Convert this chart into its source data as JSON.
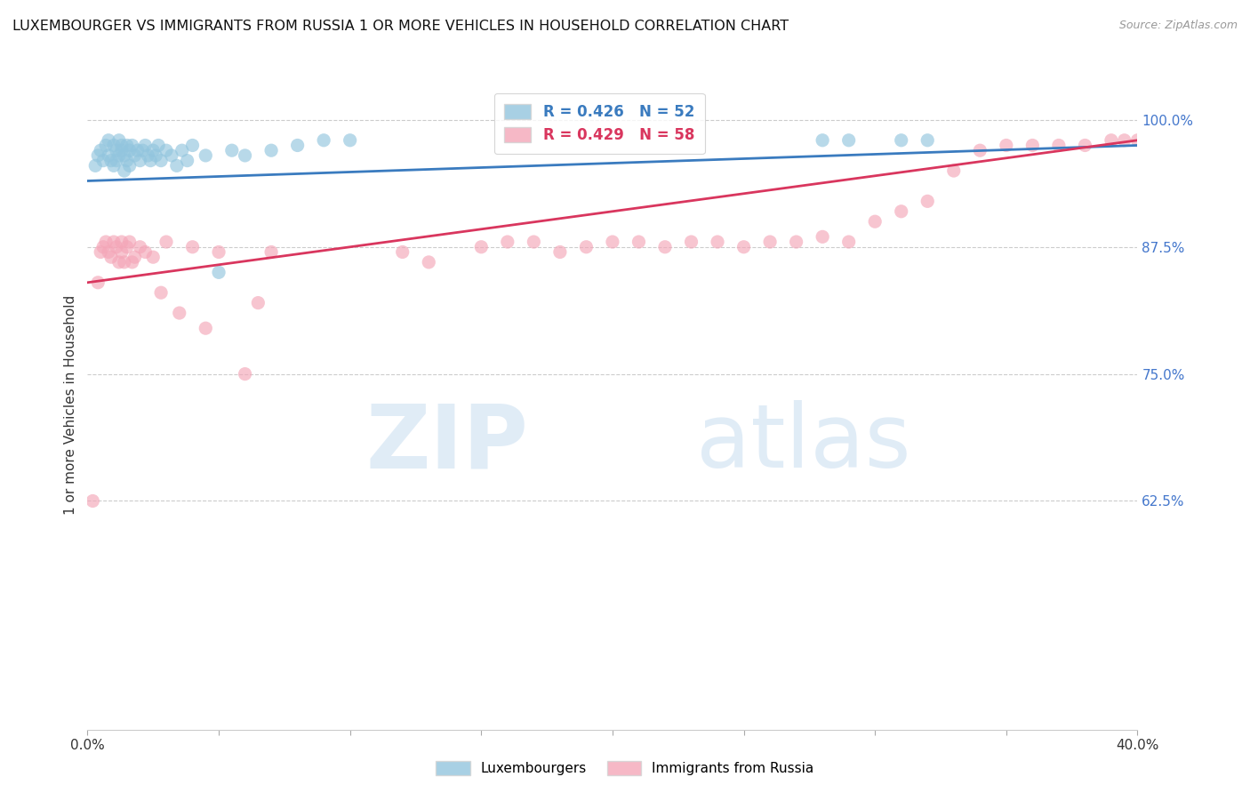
{
  "title": "LUXEMBOURGER VS IMMIGRANTS FROM RUSSIA 1 OR MORE VEHICLES IN HOUSEHOLD CORRELATION CHART",
  "source": "Source: ZipAtlas.com",
  "ylabel": "1 or more Vehicles in Household",
  "xlim": [
    0.0,
    0.4
  ],
  "ylim": [
    0.4,
    1.04
  ],
  "yticks_right": [
    0.625,
    0.75,
    0.875,
    1.0
  ],
  "ytick_labels_right": [
    "62.5%",
    "75.0%",
    "87.5%",
    "100.0%"
  ],
  "blue_R": 0.426,
  "blue_N": 52,
  "pink_R": 0.429,
  "pink_N": 58,
  "blue_color": "#92c5de",
  "pink_color": "#f4a6b8",
  "blue_line_color": "#3a7bbf",
  "pink_line_color": "#d9365e",
  "legend_label_blue": "Luxembourgers",
  "legend_label_pink": "Immigrants from Russia",
  "watermark_zip": "ZIP",
  "watermark_atlas": "atlas",
  "background_color": "#ffffff",
  "grid_color": "#cccccc",
  "blue_scatter_x": [
    0.003,
    0.004,
    0.005,
    0.006,
    0.007,
    0.008,
    0.008,
    0.009,
    0.01,
    0.01,
    0.011,
    0.011,
    0.012,
    0.012,
    0.013,
    0.013,
    0.014,
    0.014,
    0.015,
    0.015,
    0.016,
    0.016,
    0.017,
    0.018,
    0.019,
    0.02,
    0.021,
    0.022,
    0.023,
    0.024,
    0.025,
    0.026,
    0.027,
    0.028,
    0.03,
    0.032,
    0.034,
    0.036,
    0.038,
    0.04,
    0.045,
    0.05,
    0.055,
    0.06,
    0.07,
    0.08,
    0.09,
    0.1,
    0.28,
    0.29,
    0.31,
    0.32
  ],
  "blue_scatter_y": [
    0.955,
    0.965,
    0.97,
    0.96,
    0.975,
    0.965,
    0.98,
    0.96,
    0.975,
    0.955,
    0.97,
    0.96,
    0.98,
    0.965,
    0.97,
    0.975,
    0.95,
    0.965,
    0.975,
    0.96,
    0.97,
    0.955,
    0.975,
    0.965,
    0.97,
    0.96,
    0.97,
    0.975,
    0.965,
    0.96,
    0.97,
    0.965,
    0.975,
    0.96,
    0.97,
    0.965,
    0.955,
    0.97,
    0.96,
    0.975,
    0.965,
    0.85,
    0.97,
    0.965,
    0.97,
    0.975,
    0.98,
    0.98,
    0.98,
    0.98,
    0.98,
    0.98
  ],
  "pink_scatter_x": [
    0.002,
    0.004,
    0.005,
    0.006,
    0.007,
    0.008,
    0.009,
    0.01,
    0.011,
    0.012,
    0.013,
    0.013,
    0.014,
    0.015,
    0.016,
    0.017,
    0.018,
    0.02,
    0.022,
    0.025,
    0.028,
    0.03,
    0.035,
    0.04,
    0.045,
    0.05,
    0.06,
    0.065,
    0.07,
    0.12,
    0.13,
    0.15,
    0.16,
    0.17,
    0.18,
    0.19,
    0.2,
    0.21,
    0.22,
    0.23,
    0.24,
    0.25,
    0.26,
    0.27,
    0.28,
    0.29,
    0.3,
    0.31,
    0.32,
    0.33,
    0.34,
    0.35,
    0.36,
    0.37,
    0.38,
    0.39,
    0.395,
    0.4
  ],
  "pink_scatter_y": [
    0.625,
    0.84,
    0.87,
    0.875,
    0.88,
    0.87,
    0.865,
    0.88,
    0.875,
    0.86,
    0.87,
    0.88,
    0.86,
    0.875,
    0.88,
    0.86,
    0.865,
    0.875,
    0.87,
    0.865,
    0.83,
    0.88,
    0.81,
    0.875,
    0.795,
    0.87,
    0.75,
    0.82,
    0.87,
    0.87,
    0.86,
    0.875,
    0.88,
    0.88,
    0.87,
    0.875,
    0.88,
    0.88,
    0.875,
    0.88,
    0.88,
    0.875,
    0.88,
    0.88,
    0.885,
    0.88,
    0.9,
    0.91,
    0.92,
    0.95,
    0.97,
    0.975,
    0.975,
    0.975,
    0.975,
    0.98,
    0.98,
    0.98
  ],
  "blue_trend_x": [
    0.0,
    0.4
  ],
  "blue_trend_y": [
    0.94,
    0.975
  ],
  "pink_trend_x": [
    0.0,
    0.4
  ],
  "pink_trend_y": [
    0.84,
    0.98
  ],
  "title_fontsize": 11.5,
  "source_fontsize": 9
}
